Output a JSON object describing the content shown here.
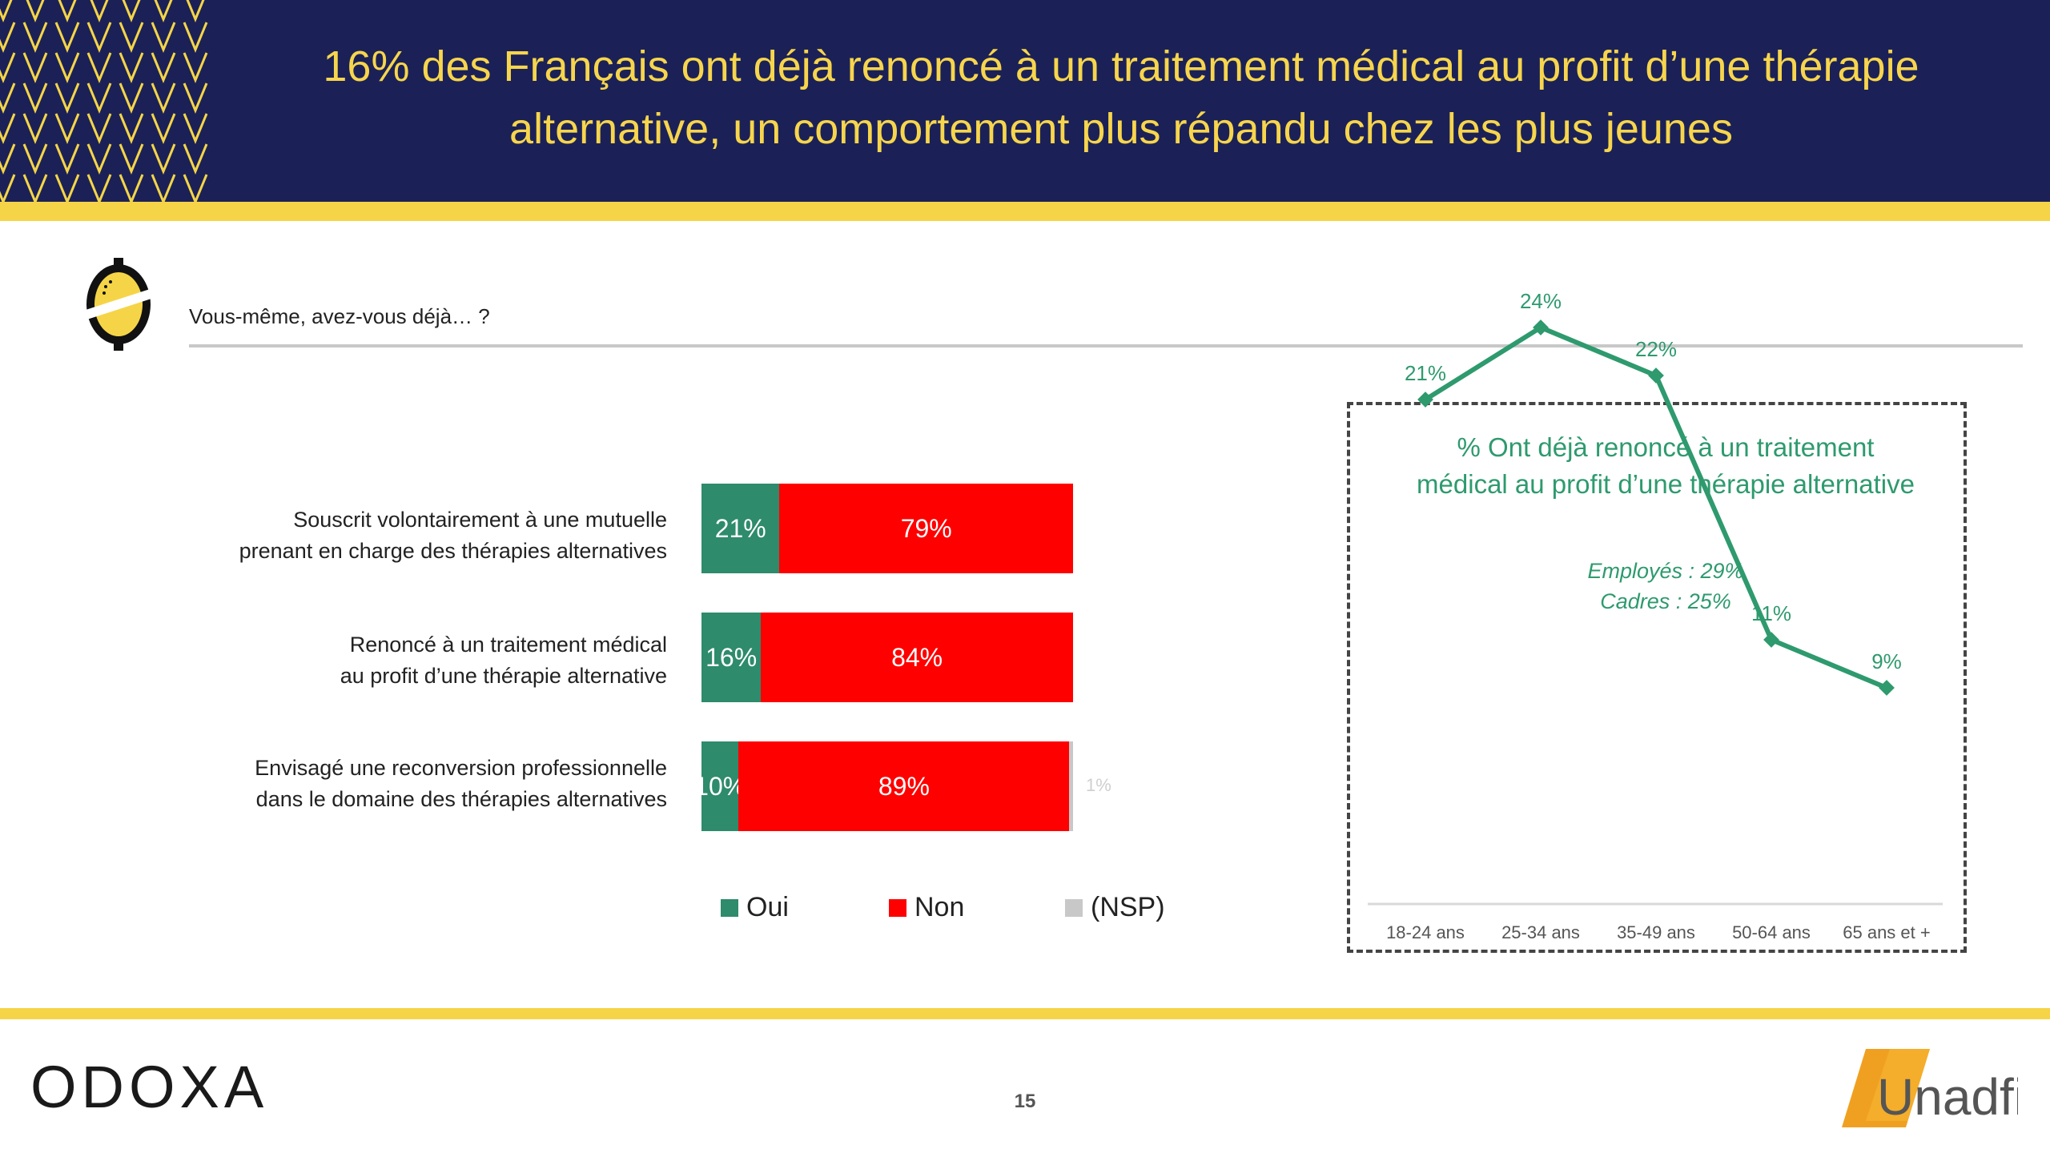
{
  "header": {
    "title_line1": "16% des Français ont déjà renoncé à un traitement médical au profit d’une thérapie",
    "title_line2": "alternative, un comportement plus répandu chez les plus jeunes"
  },
  "question": "Vous-même, avez-vous déjà… ?",
  "colors": {
    "oui": "#2e8b6b",
    "non": "#ff0000",
    "nsp": "#c8c8c8",
    "navy": "#1b2157",
    "yellow": "#f5d547",
    "line": "#2e9a6e"
  },
  "chart_data": [
    {
      "type": "bar",
      "orientation": "horizontal",
      "stacked": true,
      "categories": [
        [
          "Souscrit volontairement à une mutuelle",
          "prenant en charge des thérapies alternatives"
        ],
        [
          "Renoncé à un traitement médical",
          "au profit d’une thérapie alternative"
        ],
        [
          "Envisagé une reconversion professionnelle",
          "dans le domaine des thérapies alternatives"
        ]
      ],
      "series": [
        {
          "name": "Oui",
          "values": [
            21,
            16,
            10
          ],
          "labels": [
            "21%",
            "16%",
            "10%"
          ]
        },
        {
          "name": "Non",
          "values": [
            79,
            84,
            89
          ],
          "labels": [
            "79%",
            "84%",
            "89%"
          ]
        },
        {
          "name": "(NSP)",
          "values": [
            0,
            0,
            1
          ],
          "labels": [
            "",
            "",
            "1%"
          ]
        }
      ],
      "legend": "bottom"
    },
    {
      "type": "line",
      "title": [
        "% Ont déjà renoncé à un traitement",
        "médical au profit d’une thérapie alternative"
      ],
      "annotations": [
        "Employés : 29%",
        "Cadres : 25%"
      ],
      "categories": [
        "18-24 ans",
        "25-34 ans",
        "35-49 ans",
        "50-64 ans",
        "65 ans et +"
      ],
      "values": [
        21,
        24,
        22,
        11,
        9
      ],
      "labels": [
        "21%",
        "24%",
        "22%",
        "11%",
        "9%"
      ],
      "ylim": [
        0,
        30
      ]
    }
  ],
  "footer": {
    "page_number": "15",
    "brand_left": "ODOXA",
    "brand_right": "Unadfi"
  }
}
